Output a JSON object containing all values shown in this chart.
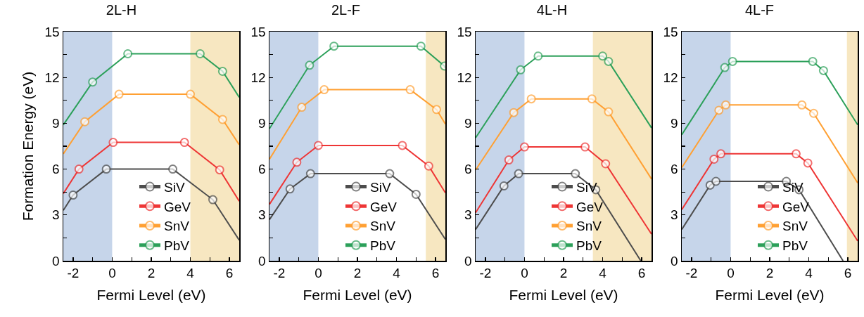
{
  "chart_data": [
    {
      "type": "line",
      "title": "2L-H",
      "xlabel": "Fermi Level (eV)",
      "ylabel": "Formation Energy (eV)",
      "xlim": [
        -2.5,
        6.5
      ],
      "ylim": [
        0,
        15
      ],
      "xticks": [
        -2,
        {
          "value": -1,
          "label": null
        },
        0,
        {
          "value": 1,
          "label": null
        },
        2,
        {
          "value": 3,
          "label": null
        },
        4,
        {
          "value": 5,
          "label": null
        },
        6
      ],
      "yticks": [
        0,
        {
          "value": 1.5,
          "label": null
        },
        3,
        {
          "value": 4.5,
          "label": null
        },
        6,
        {
          "value": 7.5,
          "label": null
        },
        9,
        {
          "value": 10.5,
          "label": null
        },
        12,
        {
          "value": 13.5,
          "label": null
        },
        15
      ],
      "grid": false,
      "legend": "bottom",
      "marker": "circle",
      "line_style": "solid",
      "bands": [
        {
          "axis": "x",
          "from": -2.5,
          "to": 0,
          "color": "#c6d5ea"
        },
        {
          "axis": "x",
          "from": 4,
          "to": 6.5,
          "color": "#f7e7c1"
        }
      ],
      "series": [
        {
          "name": "SiV",
          "color": "#4d4d4d",
          "x": [
            -2.5,
            -2.0,
            -0.3,
            3.1,
            5.15,
            6.5
          ],
          "values": [
            3.3,
            4.3,
            6.0,
            6.0,
            4.0,
            1.35
          ]
        },
        {
          "name": "GeV",
          "color": "#ee3535",
          "x": [
            -2.5,
            -1.7,
            0.05,
            3.7,
            5.5,
            6.5
          ],
          "values": [
            4.4,
            6.0,
            7.75,
            7.75,
            5.95,
            3.9
          ]
        },
        {
          "name": "SnV",
          "color": "#ffa033",
          "x": [
            -2.5,
            -1.4,
            0.35,
            4.0,
            5.65,
            6.5
          ],
          "values": [
            7.0,
            9.1,
            10.9,
            10.9,
            9.25,
            7.6
          ]
        },
        {
          "name": "PbV",
          "color": "#2ca05a",
          "x": [
            -2.5,
            -1.0,
            0.8,
            4.5,
            5.65,
            6.5
          ],
          "values": [
            8.9,
            11.7,
            13.55,
            13.55,
            12.4,
            10.7
          ]
        }
      ]
    },
    {
      "type": "line",
      "title": "2L-F",
      "xlabel": "Fermi Level (eV)",
      "xlim": [
        -2.5,
        6.5
      ],
      "ylim": [
        0,
        15
      ],
      "xticks": [
        -2,
        {
          "value": -1,
          "label": null
        },
        0,
        {
          "value": 1,
          "label": null
        },
        2,
        {
          "value": 3,
          "label": null
        },
        4,
        {
          "value": 5,
          "label": null
        },
        6
      ],
      "yticks": [
        0,
        {
          "value": 1.5,
          "label": null
        },
        3,
        {
          "value": 4.5,
          "label": null
        },
        6,
        {
          "value": 7.5,
          "label": null
        },
        9,
        {
          "value": 10.5,
          "label": null
        },
        12,
        {
          "value": 13.5,
          "label": null
        },
        15
      ],
      "grid": false,
      "legend": "bottom",
      "marker": "circle",
      "line_style": "solid",
      "bands": [
        {
          "axis": "x",
          "from": -2.5,
          "to": 0,
          "color": "#c6d5ea"
        },
        {
          "axis": "x",
          "from": 5.5,
          "to": 6.5,
          "color": "#f7e7c1"
        }
      ],
      "series": [
        {
          "name": "SiV",
          "color": "#4d4d4d",
          "x": [
            -2.5,
            -1.45,
            -0.4,
            3.65,
            5.0,
            6.5
          ],
          "values": [
            2.7,
            4.7,
            5.7,
            5.7,
            4.35,
            1.4
          ]
        },
        {
          "name": "GeV",
          "color": "#ee3535",
          "x": [
            -2.5,
            -1.1,
            0,
            4.3,
            5.65,
            6.5
          ],
          "values": [
            3.7,
            6.45,
            7.55,
            7.55,
            6.2,
            4.45
          ]
        },
        {
          "name": "SnV",
          "color": "#ffa033",
          "x": [
            -2.5,
            -0.85,
            0.3,
            4.7,
            6.05,
            6.5
          ],
          "values": [
            6.65,
            10.05,
            11.2,
            11.2,
            9.9,
            8.95
          ]
        },
        {
          "name": "PbV",
          "color": "#2ca05a",
          "x": [
            -2.5,
            -0.45,
            0.8,
            5.25,
            6.45,
            6.5
          ],
          "values": [
            8.65,
            12.8,
            14.05,
            14.05,
            12.75,
            12.6
          ]
        }
      ]
    },
    {
      "type": "line",
      "title": "4L-H",
      "xlabel": "Fermi Level (eV)",
      "xlim": [
        -2.5,
        6.5
      ],
      "ylim": [
        0,
        15
      ],
      "xticks": [
        -2,
        {
          "value": -1,
          "label": null
        },
        0,
        {
          "value": 1,
          "label": null
        },
        2,
        {
          "value": 3,
          "label": null
        },
        4,
        {
          "value": 5,
          "label": null
        },
        6
      ],
      "yticks": [
        0,
        {
          "value": 1.5,
          "label": null
        },
        3,
        {
          "value": 4.5,
          "label": null
        },
        6,
        {
          "value": 7.5,
          "label": null
        },
        9,
        {
          "value": 10.5,
          "label": null
        },
        12,
        {
          "value": 13.5,
          "label": null
        },
        15
      ],
      "grid": false,
      "legend": "bottom",
      "marker": "circle",
      "line_style": "solid",
      "bands": [
        {
          "axis": "x",
          "from": -2.5,
          "to": 0,
          "color": "#c6d5ea"
        },
        {
          "axis": "x",
          "from": 3.5,
          "to": 6.5,
          "color": "#f7e7c1"
        }
      ],
      "series": [
        {
          "name": "SiV",
          "color": "#4d4d4d",
          "x": [
            -2.5,
            -1.05,
            -0.3,
            2.6,
            3.65,
            5.95
          ],
          "values": [
            2.05,
            4.9,
            5.7,
            5.7,
            4.65,
            0
          ]
        },
        {
          "name": "GeV",
          "color": "#ee3535",
          "x": [
            -2.5,
            -0.8,
            0,
            3.1,
            4.15,
            6.5
          ],
          "values": [
            3.15,
            6.6,
            7.45,
            7.45,
            6.35,
            1.75
          ]
        },
        {
          "name": "SnV",
          "color": "#ffa033",
          "x": [
            -2.5,
            -0.55,
            0.35,
            3.45,
            4.3,
            6.5
          ],
          "values": [
            5.95,
            9.7,
            10.6,
            10.6,
            9.75,
            5.35
          ]
        },
        {
          "name": "PbV",
          "color": "#2ca05a",
          "x": [
            -2.5,
            -0.2,
            0.7,
            4.0,
            4.3,
            6.5
          ],
          "values": [
            8.05,
            12.5,
            13.4,
            13.4,
            13.05,
            8.7
          ]
        }
      ]
    },
    {
      "type": "line",
      "title": "4L-F",
      "xlabel": "Fermi Level (eV)",
      "xlim": [
        -2.5,
        6.5
      ],
      "ylim": [
        0,
        15
      ],
      "xticks": [
        -2,
        {
          "value": -1,
          "label": null
        },
        0,
        {
          "value": 1,
          "label": null
        },
        2,
        {
          "value": 3,
          "label": null
        },
        4,
        {
          "value": 5,
          "label": null
        },
        6
      ],
      "yticks": [
        0,
        {
          "value": 1.5,
          "label": null
        },
        3,
        {
          "value": 4.5,
          "label": null
        },
        6,
        {
          "value": 7.5,
          "label": null
        },
        9,
        {
          "value": 10.5,
          "label": null
        },
        12,
        {
          "value": 13.5,
          "label": null
        },
        15
      ],
      "grid": false,
      "legend": "bottom",
      "marker": "circle",
      "line_style": "solid",
      "bands": [
        {
          "axis": "x",
          "from": -2.5,
          "to": 0,
          "color": "#c6d5ea"
        },
        {
          "axis": "x",
          "from": 5.95,
          "to": 6.5,
          "color": "#f7e7c1"
        }
      ],
      "series": [
        {
          "name": "SiV",
          "color": "#4d4d4d",
          "x": [
            -2.5,
            -1.05,
            -0.75,
            2.85,
            3.5,
            5.75
          ],
          "values": [
            2.05,
            4.95,
            5.2,
            5.2,
            4.65,
            0
          ]
        },
        {
          "name": "GeV",
          "color": "#ee3535",
          "x": [
            -2.5,
            -0.85,
            -0.5,
            3.35,
            3.95,
            6.5
          ],
          "values": [
            3.35,
            6.65,
            7.0,
            7.0,
            6.4,
            1.3
          ]
        },
        {
          "name": "SnV",
          "color": "#ffa033",
          "x": [
            -2.5,
            -0.6,
            -0.25,
            3.65,
            4.25,
            6.5
          ],
          "values": [
            6.1,
            9.85,
            10.2,
            10.2,
            9.65,
            5.1
          ]
        },
        {
          "name": "PbV",
          "color": "#2ca05a",
          "x": [
            -2.5,
            -0.3,
            0.1,
            4.2,
            4.75,
            6.5
          ],
          "values": [
            8.25,
            12.65,
            13.05,
            13.05,
            12.45,
            8.9
          ]
        }
      ]
    }
  ]
}
